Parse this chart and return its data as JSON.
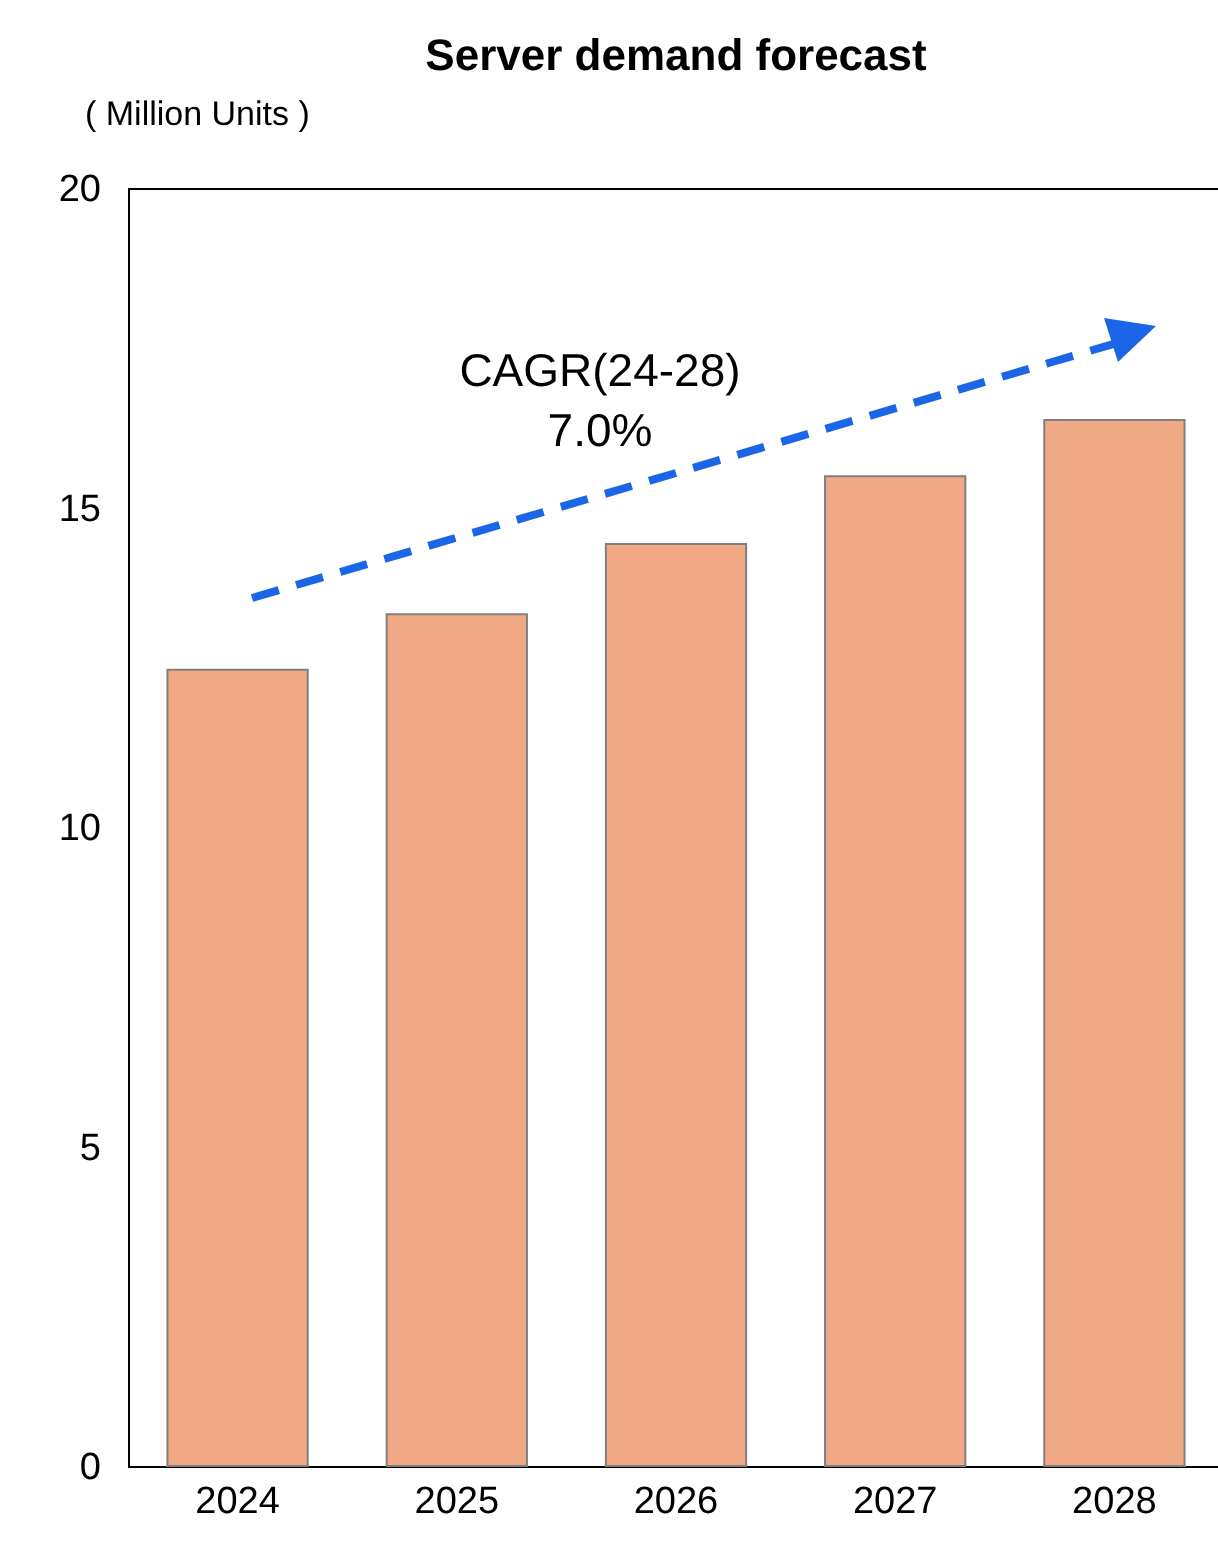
{
  "chart_data": {
    "type": "bar",
    "title": "Server demand forecast",
    "ylabel": "( Million Units )",
    "categories": [
      "2024",
      "2025",
      "2026",
      "2027",
      "2028"
    ],
    "values": [
      12.46,
      13.33,
      14.43,
      15.49,
      16.37
    ],
    "color": "#f0a984",
    "ylim": [
      0,
      20
    ],
    "yticks": [
      0,
      5,
      10,
      15,
      20
    ],
    "grid": false,
    "annotations": [
      "CAGR(24-28)",
      "7.0%"
    ]
  }
}
